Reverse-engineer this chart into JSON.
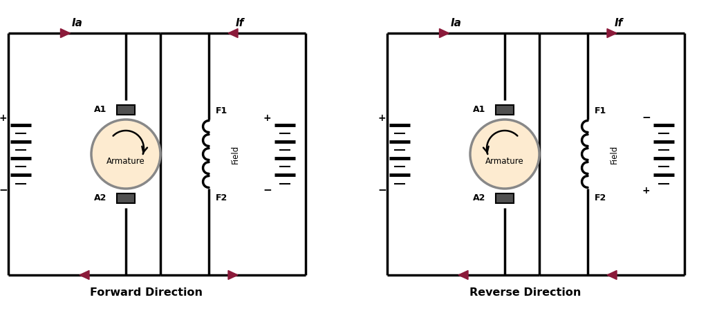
{
  "bg_color": "#ffffff",
  "line_color": "#000000",
  "arrow_color": "#8B1A3A",
  "armature_fill": "#FDEBD0",
  "armature_edge": "#888888",
  "terminal_color": "#505050",
  "lw": 2.5,
  "forward_label": "Forward Direction",
  "reverse_label": "Reverse Direction",
  "label_Ia": "Ia",
  "label_If": "If",
  "label_A1": "A1",
  "label_A2": "A2",
  "label_F1": "F1",
  "label_F2": "F2",
  "label_Field": "Field",
  "label_Armature": "Armature"
}
